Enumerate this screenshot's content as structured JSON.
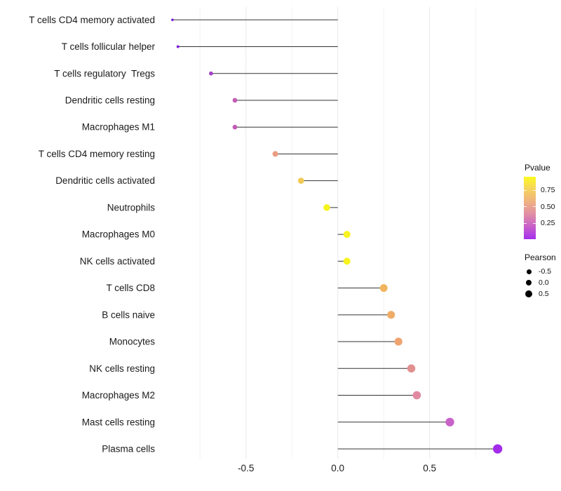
{
  "chart_data": {
    "type": "lollipop",
    "orientation": "horizontal",
    "title": "",
    "xlabel": "",
    "ylabel": "",
    "xlim": [
      -1.0,
      0.96
    ],
    "grid": "vertical gridlines only, white panel background",
    "x_ticks": [
      {
        "label": "-0.5",
        "value": -0.5
      },
      {
        "label": "0.0",
        "value": 0.0
      },
      {
        "label": "0.5",
        "value": 0.5
      }
    ],
    "x_minor_gridlines": [
      -0.75,
      -0.25,
      0.25,
      0.75
    ],
    "points": [
      {
        "label": "T cells CD4 memory activated",
        "pearson": -0.9,
        "dot_color": "#7A1EDC"
      },
      {
        "label": "T cells follicular helper",
        "pearson": -0.87,
        "dot_color": "#8322DA"
      },
      {
        "label": "T cells regulatory  Tregs",
        "pearson": -0.69,
        "dot_color": "#A33FC8"
      },
      {
        "label": "Dendritic cells resting",
        "pearson": -0.56,
        "dot_color": "#C45BB4"
      },
      {
        "label": "Macrophages M1",
        "pearson": -0.56,
        "dot_color": "#C45BB4"
      },
      {
        "label": "T cells CD4 memory resting",
        "pearson": -0.34,
        "dot_color": "#EA9C80"
      },
      {
        "label": "Dendritic cells activated",
        "pearson": -0.2,
        "dot_color": "#F2CA57"
      },
      {
        "label": "Neutrophils",
        "pearson": -0.06,
        "dot_color": "#F6F41C"
      },
      {
        "label": "Macrophages M0",
        "pearson": 0.05,
        "dot_color": "#F8F320"
      },
      {
        "label": "NK cells activated",
        "pearson": 0.05,
        "dot_color": "#F8F320"
      },
      {
        "label": "T cells CD8",
        "pearson": 0.25,
        "dot_color": "#F2B45E"
      },
      {
        "label": "B cells naive",
        "pearson": 0.29,
        "dot_color": "#F0AC66"
      },
      {
        "label": "Monocytes",
        "pearson": 0.33,
        "dot_color": "#EFA470"
      },
      {
        "label": "NK cells resting",
        "pearson": 0.4,
        "dot_color": "#E28F90"
      },
      {
        "label": "Macrophages M2",
        "pearson": 0.43,
        "dot_color": "#E189A0"
      },
      {
        "label": "Mast cells resting",
        "pearson": 0.61,
        "dot_color": "#C763C8"
      },
      {
        "label": "Plasma cells",
        "pearson": 0.87,
        "dot_color": "#A32BEA"
      }
    ],
    "legends": {
      "pvalue": {
        "title": "Pvalue",
        "ticks": [
          "0.75",
          "0.50",
          "0.25"
        ],
        "gradient_top_to_bottom": [
          "#FCF920",
          "#F7DA55",
          "#F0B47E",
          "#E292A2",
          "#CB63C7",
          "#A42FEC"
        ]
      },
      "pearson": {
        "title": "Pearson",
        "dot_color": "#000000",
        "entries": [
          {
            "label": "-0.5",
            "value": -0.5
          },
          {
            "label": "0.0",
            "value": 0.0
          },
          {
            "label": "0.5",
            "value": 0.5
          }
        ]
      }
    },
    "colors": {
      "stem": "#333333",
      "gridline_major": "#E9E9E9",
      "gridline_minor": "#F2F2F2",
      "axis_text": "#1A1A1A",
      "background": "#FFFFFF"
    }
  }
}
